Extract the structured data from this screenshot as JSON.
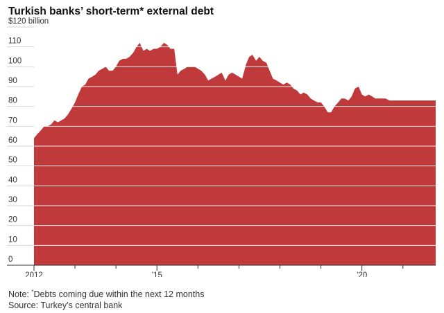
{
  "chart_data": {
    "type": "area",
    "title": "Turkish banks’ short-term* external debt",
    "unit_label": "$120 billion",
    "ylim": [
      0,
      120
    ],
    "y_ticks": [
      {
        "value": 120,
        "label": "$120 billion"
      },
      {
        "value": 110,
        "label": "110"
      },
      {
        "value": 100,
        "label": "100"
      },
      {
        "value": 90,
        "label": "90"
      },
      {
        "value": 80,
        "label": "80"
      },
      {
        "value": 70,
        "label": "70"
      },
      {
        "value": 60,
        "label": "60"
      },
      {
        "value": 50,
        "label": "50"
      },
      {
        "value": 40,
        "label": "40"
      },
      {
        "value": 30,
        "label": "30"
      },
      {
        "value": 20,
        "label": "20"
      },
      {
        "value": 10,
        "label": "10"
      },
      {
        "value": 0,
        "label": "0"
      }
    ],
    "xlim": [
      2012.0,
      2021.8
    ],
    "x_ticks": [
      {
        "value": 2012,
        "label": "2012",
        "major": true
      },
      {
        "value": 2013,
        "label": "",
        "major": false
      },
      {
        "value": 2014,
        "label": "",
        "major": false
      },
      {
        "value": 2015,
        "label": "’15",
        "major": true
      },
      {
        "value": 2016,
        "label": "",
        "major": false
      },
      {
        "value": 2017,
        "label": "",
        "major": false
      },
      {
        "value": 2018,
        "label": "",
        "major": false
      },
      {
        "value": 2019,
        "label": "",
        "major": false
      },
      {
        "value": 2020,
        "label": "’20",
        "major": true
      },
      {
        "value": 2021,
        "label": "",
        "major": false
      }
    ],
    "grid": true,
    "fill_color": "#c0393b",
    "x": [
      2012.0,
      2012.08,
      2012.17,
      2012.25,
      2012.33,
      2012.42,
      2012.5,
      2012.58,
      2012.67,
      2012.75,
      2012.83,
      2012.92,
      2013.0,
      2013.08,
      2013.17,
      2013.25,
      2013.33,
      2013.42,
      2013.5,
      2013.58,
      2013.67,
      2013.75,
      2013.83,
      2013.92,
      2014.0,
      2014.08,
      2014.17,
      2014.25,
      2014.33,
      2014.42,
      2014.5,
      2014.58,
      2014.67,
      2014.75,
      2014.83,
      2014.92,
      2015.0,
      2015.08,
      2015.17,
      2015.25,
      2015.33,
      2015.42,
      2015.5,
      2015.58,
      2015.67,
      2015.75,
      2015.83,
      2015.92,
      2016.0,
      2016.08,
      2016.17,
      2016.25,
      2016.33,
      2016.42,
      2016.5,
      2016.58,
      2016.67,
      2016.75,
      2016.83,
      2016.92,
      2017.0,
      2017.08,
      2017.17,
      2017.25,
      2017.33,
      2017.42,
      2017.5,
      2017.58,
      2017.67,
      2017.75,
      2017.83,
      2017.92,
      2018.0,
      2018.08,
      2018.17,
      2018.25,
      2018.33,
      2018.42,
      2018.5,
      2018.58,
      2018.67,
      2018.75,
      2018.83,
      2018.92,
      2019.0,
      2019.08,
      2019.17,
      2019.25,
      2019.33,
      2019.42,
      2019.5,
      2019.58,
      2019.67,
      2019.75,
      2019.83,
      2019.92,
      2020.0,
      2020.08,
      2020.17,
      2020.25,
      2020.33,
      2020.42,
      2020.5,
      2020.58,
      2020.67,
      2020.75,
      2020.83,
      2020.92,
      2021.0,
      2021.08,
      2021.17,
      2021.25,
      2021.33,
      2021.42,
      2021.5,
      2021.58,
      2021.67,
      2021.75,
      2021.8
    ],
    "y": [
      64,
      66,
      68,
      70,
      70,
      71,
      73,
      72,
      73,
      74,
      76,
      79,
      82,
      86,
      90,
      91,
      94,
      95,
      96,
      98,
      99,
      100,
      98,
      98,
      100,
      103,
      104,
      104,
      105,
      107,
      110,
      112,
      108,
      109,
      108,
      109,
      109,
      110,
      112,
      111,
      109,
      109,
      96,
      98,
      99,
      100,
      100,
      100,
      99,
      98,
      96,
      93,
      94,
      95,
      96,
      97,
      93,
      96,
      97,
      96,
      95,
      94,
      101,
      105,
      106,
      103,
      105,
      103,
      102,
      98,
      94,
      93,
      92,
      91,
      92,
      91,
      89,
      88,
      86,
      87,
      86,
      84,
      83,
      82,
      82,
      80,
      77,
      77,
      80,
      82,
      84,
      84,
      83,
      85,
      89,
      90,
      86,
      85,
      86,
      85,
      84,
      84,
      84,
      84,
      83,
      83,
      83,
      83,
      83,
      83,
      83,
      83,
      83,
      83,
      83,
      83,
      83,
      83,
      83
    ]
  },
  "footnotes": {
    "note_prefix": "Note: ",
    "note_marker": "*",
    "note_text": "Debts coming due within the next 12 months",
    "source": "Source: Turkey’s central bank"
  }
}
